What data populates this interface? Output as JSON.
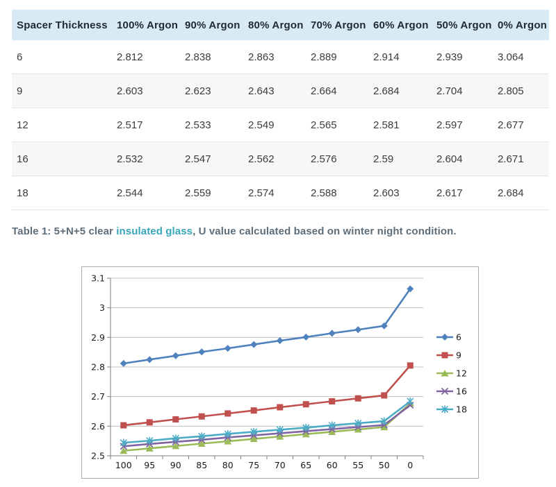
{
  "table": {
    "columns": [
      "Spacer Thickness",
      "100% Argon",
      "90% Argon",
      "80% Argon",
      "70% Argon",
      "60% Argon",
      "50% Argon",
      "0% Argon"
    ],
    "rows": [
      [
        "6",
        "2.812",
        "2.838",
        "2.863",
        "2.889",
        "2.914",
        "2.939",
        "3.064"
      ],
      [
        "9",
        "2.603",
        "2.623",
        "2.643",
        "2.664",
        "2.684",
        "2.704",
        "2.805"
      ],
      [
        "12",
        "2.517",
        "2.533",
        "2.549",
        "2.565",
        "2.581",
        "2.597",
        "2.677"
      ],
      [
        "16",
        "2.532",
        "2.547",
        "2.562",
        "2.576",
        "2.59",
        "2.604",
        "2.671"
      ],
      [
        "18",
        "2.544",
        "2.559",
        "2.574",
        "2.588",
        "2.603",
        "2.617",
        "2.684"
      ]
    ]
  },
  "caption": {
    "prefix": "Table 1: 5+N+5 clear ",
    "link": "insulated glass",
    "suffix": ", U value calculated based on winter night condition."
  },
  "colors": {
    "header_bg": "#d8ebf5",
    "caption_text": "#5d6d7a",
    "caption_link": "#39a5b9",
    "grid": "#bfbfbf",
    "axis": "#7f7f7f",
    "chart_border": "#ababab"
  },
  "chart_data": {
    "type": "line",
    "x": [
      "100",
      "95",
      "90",
      "85",
      "80",
      "75",
      "70",
      "65",
      "60",
      "55",
      "50",
      "0"
    ],
    "series": [
      {
        "name": "6",
        "marker": "diamond",
        "color": "#4F81BD",
        "values": [
          2.812,
          2.825,
          2.838,
          2.851,
          2.863,
          2.876,
          2.889,
          2.901,
          2.914,
          2.926,
          2.939,
          3.064
        ]
      },
      {
        "name": "9",
        "marker": "square",
        "color": "#C0504D",
        "values": [
          2.603,
          2.613,
          2.623,
          2.633,
          2.643,
          2.653,
          2.664,
          2.674,
          2.684,
          2.694,
          2.704,
          2.805
        ]
      },
      {
        "name": "12",
        "marker": "triangle",
        "color": "#9BBB59",
        "values": [
          2.517,
          2.525,
          2.533,
          2.541,
          2.549,
          2.557,
          2.565,
          2.573,
          2.581,
          2.589,
          2.597,
          2.677
        ]
      },
      {
        "name": "16",
        "marker": "x",
        "color": "#8064A2",
        "values": [
          2.532,
          2.54,
          2.547,
          2.554,
          2.562,
          2.569,
          2.576,
          2.583,
          2.59,
          2.597,
          2.604,
          2.671
        ]
      },
      {
        "name": "18",
        "marker": "asterisk",
        "color": "#4BACC6",
        "values": [
          2.544,
          2.551,
          2.559,
          2.566,
          2.574,
          2.581,
          2.588,
          2.595,
          2.603,
          2.61,
          2.617,
          2.684
        ]
      }
    ],
    "ylim": [
      2.5,
      3.1
    ],
    "yticklabels": [
      "2.5",
      "2.6",
      "2.7",
      "2.8",
      "2.9",
      "3",
      "3.1"
    ],
    "xlabel": "",
    "ylabel": "",
    "title": "",
    "grid": true,
    "legend_position": "right"
  }
}
